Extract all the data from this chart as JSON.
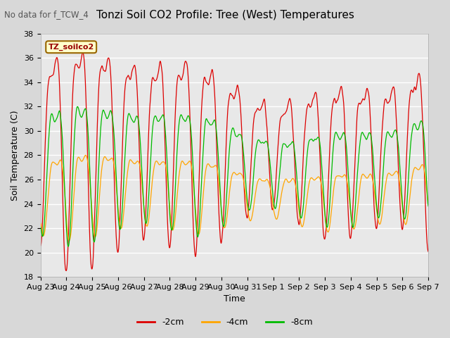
{
  "title": "Tonzi Soil CO2 Profile: Tree (West) Temperatures",
  "subtitle": "No data for f_TCW_4",
  "ylabel": "Soil Temperature (C)",
  "xlabel": "Time",
  "ylim": [
    18,
    38
  ],
  "legend_label": "TZ_soilco2",
  "series_labels": [
    "-2cm",
    "-4cm",
    "-8cm"
  ],
  "series_colors": [
    "#dd0000",
    "#ffa500",
    "#00bb00"
  ],
  "x_tick_labels": [
    "Aug 23",
    "Aug 24",
    "Aug 25",
    "Aug 26",
    "Aug 27",
    "Aug 28",
    "Aug 29",
    "Aug 30",
    "Aug 31",
    "Sep 1",
    "Sep 2",
    "Sep 3",
    "Sep 4",
    "Sep 5",
    "Sep 6",
    "Sep 7"
  ],
  "background_color": "#d8d8d8",
  "plot_background": "#e8e8e8",
  "grid_color": "#ffffff",
  "title_fontsize": 11,
  "tick_fontsize": 8,
  "ylabel_fontsize": 9,
  "figsize": [
    6.4,
    4.8
  ],
  "dpi": 100
}
